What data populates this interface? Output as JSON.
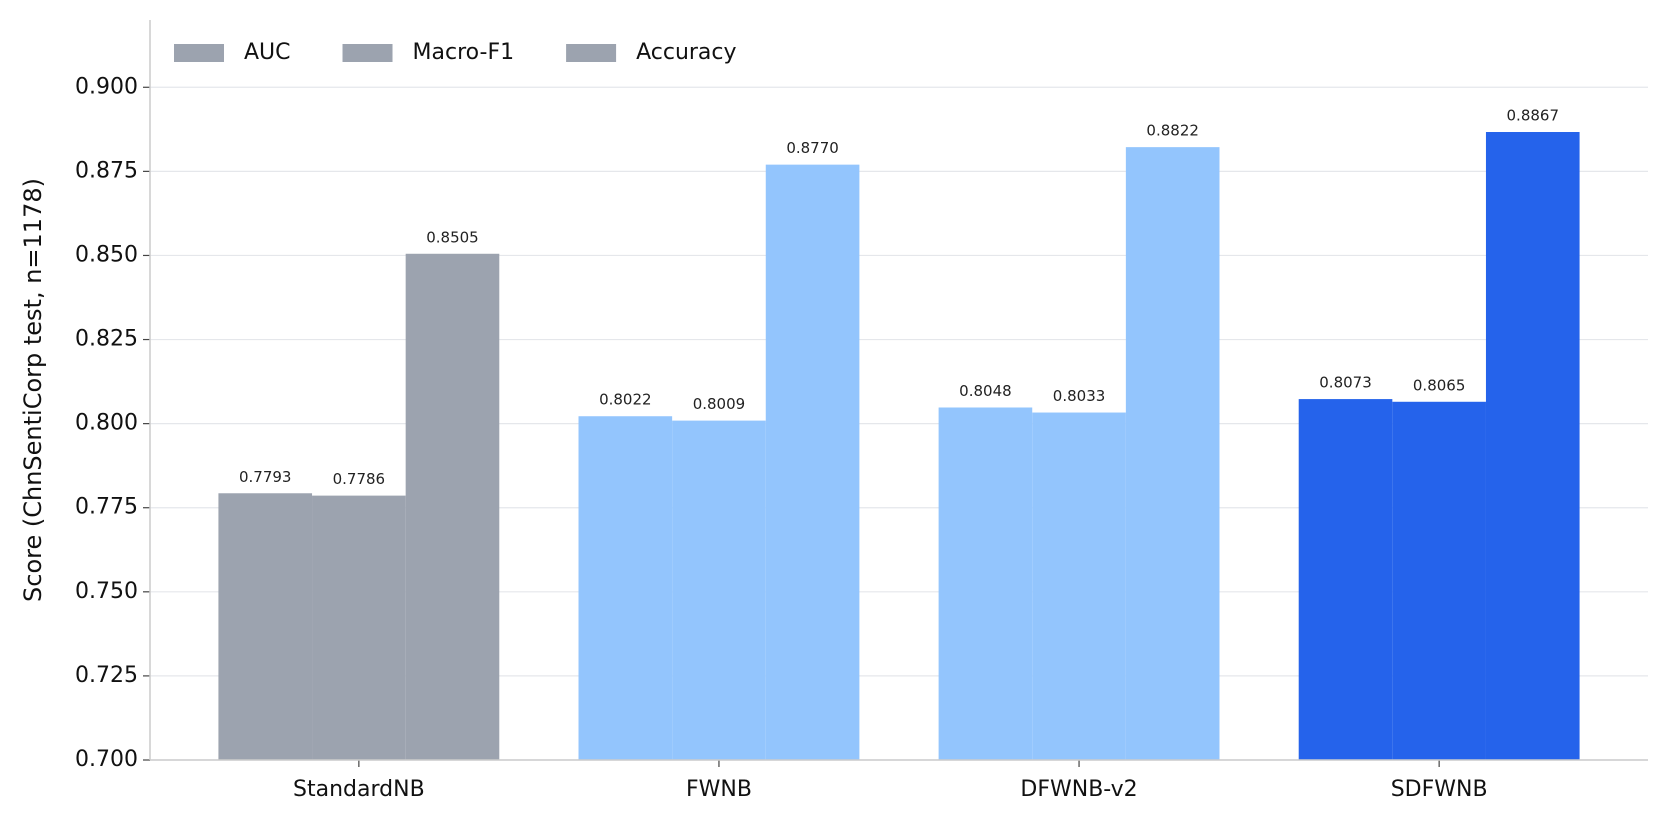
{
  "chart_data": {
    "type": "bar",
    "y_label": "Score (ChnSentiCorp test, n=1178)",
    "categories": [
      "StandardNB",
      "FWNB",
      "DFWNB-v2",
      "SDFWNB"
    ],
    "category_colors": [
      "#9ca3af",
      "#93c5fd",
      "#93c5fd",
      "#2563eb"
    ],
    "series": [
      {
        "name": "AUC",
        "color": "#9ca3af",
        "values": [
          0.7793,
          0.8022,
          0.8048,
          0.8073
        ],
        "value_labels": [
          "0.7793",
          "0.8022",
          "0.8048",
          "0.8073"
        ]
      },
      {
        "name": "Macro-F1",
        "color": "#9ca3af",
        "values": [
          0.7786,
          0.8009,
          0.8033,
          0.8065
        ],
        "value_labels": [
          "0.7786",
          "0.8009",
          "0.8033",
          "0.8065"
        ]
      },
      {
        "name": "Accuracy",
        "color": "#9ca3af",
        "values": [
          0.8505,
          0.877,
          0.8822,
          0.8867
        ],
        "value_labels": [
          "0.8505",
          "0.8770",
          "0.8822",
          "0.8867"
        ]
      }
    ],
    "ylim": [
      0.7,
      0.92
    ],
    "yticks": [
      {
        "value": 0.7,
        "label": "0.700"
      },
      {
        "value": 0.725,
        "label": "0.725"
      },
      {
        "value": 0.75,
        "label": "0.750"
      },
      {
        "value": 0.775,
        "label": "0.775"
      },
      {
        "value": 0.8,
        "label": "0.800"
      },
      {
        "value": 0.825,
        "label": "0.825"
      },
      {
        "value": 0.85,
        "label": "0.850"
      },
      {
        "value": 0.875,
        "label": "0.875"
      },
      {
        "value": 0.9,
        "label": "0.900"
      }
    ],
    "grid": true,
    "legend": "upper left"
  }
}
